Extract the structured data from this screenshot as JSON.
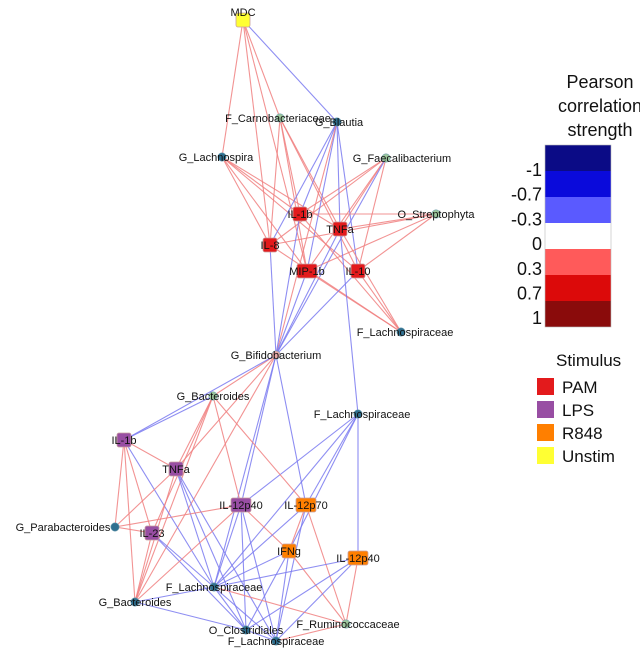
{
  "colorbar": {
    "title_lines": [
      "Pearson",
      "correlation",
      "strength"
    ],
    "ticks": [
      "-1",
      "-0.7",
      "-0.3",
      "0",
      "0.3",
      "0.7",
      "1"
    ],
    "colors": [
      "#0b0b86",
      "#0a0adb",
      "#5a5aff",
      "#ffffff",
      "#ff5a5a",
      "#dc0a0a",
      "#8a0b0b"
    ]
  },
  "stimulus_legend": {
    "title": "Stimulus",
    "items": [
      {
        "label": "PAM",
        "color": "#e31a1c"
      },
      {
        "label": "LPS",
        "color": "#984ea3"
      },
      {
        "label": "R848",
        "color": "#ff7f00"
      },
      {
        "label": "Unstim",
        "color": "#ffff33"
      }
    ]
  },
  "edge_colors": {
    "positive": "#f08080",
    "negative": "#7a7af0"
  },
  "nodes": [
    {
      "id": "mdc",
      "label": "MDC",
      "kind": "cytokine",
      "stim": "Unstim"
    },
    {
      "id": "carno",
      "label": "F_Carnobacteriaceae",
      "kind": "taxon",
      "color": "#9cc69c"
    },
    {
      "id": "blautia",
      "label": "G_Blautia",
      "kind": "taxon",
      "color": "#2f6f8f"
    },
    {
      "id": "lachno_g",
      "label": "G_Lachnospira",
      "kind": "taxon",
      "color": "#2f6f8f"
    },
    {
      "id": "faecali",
      "label": "G_Faecalibacterium",
      "kind": "taxon",
      "color": "#9cc69c"
    },
    {
      "id": "il1b_pam",
      "label": "IL-1b",
      "kind": "cytokine",
      "stim": "PAM"
    },
    {
      "id": "tnfa_pam",
      "label": "TNFa",
      "kind": "cytokine",
      "stim": "PAM"
    },
    {
      "id": "strepto",
      "label": "O_Streptophyta",
      "kind": "taxon",
      "color": "#9cc69c"
    },
    {
      "id": "il8_pam",
      "label": "IL-8",
      "kind": "cytokine",
      "stim": "PAM"
    },
    {
      "id": "mip1b_pam",
      "label": "MIP-1b",
      "kind": "cytokine",
      "stim": "PAM"
    },
    {
      "id": "il10_pam",
      "label": "IL-10",
      "kind": "cytokine",
      "stim": "PAM"
    },
    {
      "id": "lachnoF1",
      "label": "F_Lachnospiraceae",
      "kind": "taxon",
      "color": "#2f6f8f"
    },
    {
      "id": "bifido",
      "label": "G_Bifidobacterium",
      "kind": "taxon",
      "color": "#e9a8a8"
    },
    {
      "id": "bacter1",
      "label": "G_Bacteroides",
      "kind": "taxon",
      "color": "#9cc69c"
    },
    {
      "id": "lachnoF2",
      "label": "F_Lachnospiraceae",
      "kind": "taxon",
      "color": "#2f6f8f"
    },
    {
      "id": "il1b_lps",
      "label": "IL-1b",
      "kind": "cytokine",
      "stim": "LPS"
    },
    {
      "id": "tnfa_lps",
      "label": "TNFa",
      "kind": "cytokine",
      "stim": "LPS"
    },
    {
      "id": "il12p40_lps",
      "label": "IL-12p40",
      "kind": "cytokine",
      "stim": "LPS"
    },
    {
      "id": "il12p70_r848",
      "label": "IL-12p70",
      "kind": "cytokine",
      "stim": "R848"
    },
    {
      "id": "parabac",
      "label": "G_Parabacteroides",
      "kind": "taxon",
      "color": "#2f6f8f"
    },
    {
      "id": "il23_lps",
      "label": "IL-23",
      "kind": "cytokine",
      "stim": "LPS"
    },
    {
      "id": "ifng_r848",
      "label": "IFNg",
      "kind": "cytokine",
      "stim": "R848"
    },
    {
      "id": "il12p40_r848",
      "label": "IL-12p40",
      "kind": "cytokine",
      "stim": "R848"
    },
    {
      "id": "lachnoF3",
      "label": "F_Lachnospiraceae",
      "kind": "taxon",
      "color": "#2f6f8f"
    },
    {
      "id": "bacter2",
      "label": "G_Bacteroides",
      "kind": "taxon",
      "color": "#2f6f8f"
    },
    {
      "id": "rumino",
      "label": "F_Ruminococcaceae",
      "kind": "taxon",
      "color": "#9cc69c"
    },
    {
      "id": "clostri",
      "label": "O_Clostridiales",
      "kind": "taxon",
      "color": "#2f6f8f"
    },
    {
      "id": "lachnoF4",
      "label": "F_Lachnospiraceae",
      "kind": "taxon",
      "color": "#2f6f8f"
    }
  ],
  "edges": [
    {
      "a": "mdc",
      "b": "carno",
      "sign": "pos"
    },
    {
      "a": "mdc",
      "b": "lachno_g",
      "sign": "pos"
    },
    {
      "a": "mdc",
      "b": "il8_pam",
      "sign": "pos"
    },
    {
      "a": "mdc",
      "b": "mip1b_pam",
      "sign": "pos"
    },
    {
      "a": "mdc",
      "b": "blautia",
      "sign": "neg"
    },
    {
      "a": "carno",
      "b": "il1b_pam",
      "sign": "pos"
    },
    {
      "a": "carno",
      "b": "tnfa_pam",
      "sign": "pos"
    },
    {
      "a": "carno",
      "b": "il8_pam",
      "sign": "pos"
    },
    {
      "a": "carno",
      "b": "mip1b_pam",
      "sign": "pos"
    },
    {
      "a": "carno",
      "b": "il10_pam",
      "sign": "pos"
    },
    {
      "a": "lachno_g",
      "b": "il1b_pam",
      "sign": "pos"
    },
    {
      "a": "lachno_g",
      "b": "tnfa_pam",
      "sign": "pos"
    },
    {
      "a": "lachno_g",
      "b": "il8_pam",
      "sign": "pos"
    },
    {
      "a": "lachno_g",
      "b": "mip1b_pam",
      "sign": "pos"
    },
    {
      "a": "lachno_g",
      "b": "il10_pam",
      "sign": "pos"
    },
    {
      "a": "faecali",
      "b": "il1b_pam",
      "sign": "pos"
    },
    {
      "a": "faecali",
      "b": "tnfa_pam",
      "sign": "pos"
    },
    {
      "a": "faecali",
      "b": "il8_pam",
      "sign": "pos"
    },
    {
      "a": "faecali",
      "b": "mip1b_pam",
      "sign": "pos"
    },
    {
      "a": "faecali",
      "b": "il10_pam",
      "sign": "pos"
    },
    {
      "a": "faecali",
      "b": "bifido",
      "sign": "neg"
    },
    {
      "a": "blautia",
      "b": "il1b_pam",
      "sign": "neg"
    },
    {
      "a": "blautia",
      "b": "tnfa_pam",
      "sign": "neg"
    },
    {
      "a": "blautia",
      "b": "il8_pam",
      "sign": "neg"
    },
    {
      "a": "blautia",
      "b": "mip1b_pam",
      "sign": "neg"
    },
    {
      "a": "blautia",
      "b": "il10_pam",
      "sign": "neg"
    },
    {
      "a": "blautia",
      "b": "bifido",
      "sign": "pos"
    },
    {
      "a": "strepto",
      "b": "il1b_pam",
      "sign": "pos"
    },
    {
      "a": "strepto",
      "b": "tnfa_pam",
      "sign": "pos"
    },
    {
      "a": "strepto",
      "b": "il8_pam",
      "sign": "pos"
    },
    {
      "a": "strepto",
      "b": "mip1b_pam",
      "sign": "pos"
    },
    {
      "a": "strepto",
      "b": "il10_pam",
      "sign": "pos"
    },
    {
      "a": "lachnoF1",
      "b": "il1b_pam",
      "sign": "pos"
    },
    {
      "a": "lachnoF1",
      "b": "tnfa_pam",
      "sign": "pos"
    },
    {
      "a": "lachnoF1",
      "b": "il8_pam",
      "sign": "pos"
    },
    {
      "a": "lachnoF1",
      "b": "mip1b_pam",
      "sign": "pos"
    },
    {
      "a": "lachnoF1",
      "b": "il10_pam",
      "sign": "pos"
    },
    {
      "a": "bifido",
      "b": "il1b_pam",
      "sign": "neg"
    },
    {
      "a": "bifido",
      "b": "tnfa_pam",
      "sign": "neg"
    },
    {
      "a": "bifido",
      "b": "il8_pam",
      "sign": "neg"
    },
    {
      "a": "bifido",
      "b": "mip1b_pam",
      "sign": "neg"
    },
    {
      "a": "bifido",
      "b": "il10_pam",
      "sign": "neg"
    },
    {
      "a": "bifido",
      "b": "bacter1",
      "sign": "pos"
    },
    {
      "a": "bifido",
      "b": "il1b_lps",
      "sign": "neg"
    },
    {
      "a": "bifido",
      "b": "tnfa_lps",
      "sign": "pos"
    },
    {
      "a": "bifido",
      "b": "il12p40_lps",
      "sign": "neg"
    },
    {
      "a": "bifido",
      "b": "il12p70_r848",
      "sign": "neg"
    },
    {
      "a": "bifido",
      "b": "bacter2",
      "sign": "pos"
    },
    {
      "a": "bifido",
      "b": "lachnoF3",
      "sign": "neg"
    },
    {
      "a": "tnfa_pam",
      "b": "lachnoF2",
      "sign": "neg"
    },
    {
      "a": "lachnoF2",
      "b": "il12p40_lps",
      "sign": "neg"
    },
    {
      "a": "lachnoF2",
      "b": "il12p70_r848",
      "sign": "neg"
    },
    {
      "a": "lachnoF2",
      "b": "ifng_r848",
      "sign": "neg"
    },
    {
      "a": "lachnoF2",
      "b": "il12p40_r848",
      "sign": "neg"
    },
    {
      "a": "lachnoF2",
      "b": "lachnoF3",
      "sign": "neg"
    },
    {
      "a": "bacter1",
      "b": "il1b_lps",
      "sign": "neg"
    },
    {
      "a": "bacter1",
      "b": "tnfa_lps",
      "sign": "pos"
    },
    {
      "a": "bacter1",
      "b": "il12p40_lps",
      "sign": "pos"
    },
    {
      "a": "bacter1",
      "b": "il12p70_r848",
      "sign": "pos"
    },
    {
      "a": "bacter1",
      "b": "il23_lps",
      "sign": "pos"
    },
    {
      "a": "bacter1",
      "b": "bacter2",
      "sign": "pos"
    },
    {
      "a": "il1b_lps",
      "b": "tnfa_lps",
      "sign": "pos"
    },
    {
      "a": "il1b_lps",
      "b": "parabac",
      "sign": "pos"
    },
    {
      "a": "il1b_lps",
      "b": "il23_lps",
      "sign": "pos"
    },
    {
      "a": "il1b_lps",
      "b": "lachnoF3",
      "sign": "neg"
    },
    {
      "a": "il1b_lps",
      "b": "bacter2",
      "sign": "pos"
    },
    {
      "a": "tnfa_lps",
      "b": "parabac",
      "sign": "pos"
    },
    {
      "a": "tnfa_lps",
      "b": "bacter2",
      "sign": "pos"
    },
    {
      "a": "tnfa_lps",
      "b": "lachnoF3",
      "sign": "neg"
    },
    {
      "a": "tnfa_lps",
      "b": "clostri",
      "sign": "neg"
    },
    {
      "a": "tnfa_lps",
      "b": "lachnoF4",
      "sign": "neg"
    },
    {
      "a": "parabac",
      "b": "il12p40_lps",
      "sign": "pos"
    },
    {
      "a": "parabac",
      "b": "il23_lps",
      "sign": "pos"
    },
    {
      "a": "il23_lps",
      "b": "lachnoF3",
      "sign": "neg"
    },
    {
      "a": "il23_lps",
      "b": "bacter2",
      "sign": "pos"
    },
    {
      "a": "il23_lps",
      "b": "clostri",
      "sign": "neg"
    },
    {
      "a": "il12p40_lps",
      "b": "lachnoF3",
      "sign": "neg"
    },
    {
      "a": "il12p40_lps",
      "b": "ifng_r848",
      "sign": "pos"
    },
    {
      "a": "il12p40_lps",
      "b": "clostri",
      "sign": "neg"
    },
    {
      "a": "il12p40_lps",
      "b": "lachnoF4",
      "sign": "neg"
    },
    {
      "a": "il12p40_lps",
      "b": "bacter2",
      "sign": "pos"
    },
    {
      "a": "il12p70_r848",
      "b": "lachnoF3",
      "sign": "neg"
    },
    {
      "a": "il12p70_r848",
      "b": "ifng_r848",
      "sign": "pos"
    },
    {
      "a": "il12p70_r848",
      "b": "rumino",
      "sign": "pos"
    },
    {
      "a": "il12p70_r848",
      "b": "lachnoF4",
      "sign": "neg"
    },
    {
      "a": "ifng_r848",
      "b": "lachnoF3",
      "sign": "neg"
    },
    {
      "a": "ifng_r848",
      "b": "clostri",
      "sign": "neg"
    },
    {
      "a": "ifng_r848",
      "b": "lachnoF4",
      "sign": "neg"
    },
    {
      "a": "ifng_r848",
      "b": "rumino",
      "sign": "pos"
    },
    {
      "a": "il12p40_r848",
      "b": "lachnoF3",
      "sign": "neg"
    },
    {
      "a": "il12p40_r848",
      "b": "rumino",
      "sign": "pos"
    },
    {
      "a": "il12p40_r848",
      "b": "lachnoF4",
      "sign": "neg"
    },
    {
      "a": "il12p40_r848",
      "b": "clostri",
      "sign": "neg"
    },
    {
      "a": "lachnoF3",
      "b": "bacter2",
      "sign": "neg"
    },
    {
      "a": "lachnoF3",
      "b": "clostri",
      "sign": "neg"
    },
    {
      "a": "lachnoF3",
      "b": "lachnoF4",
      "sign": "neg"
    },
    {
      "a": "lachnoF3",
      "b": "rumino",
      "sign": "pos"
    },
    {
      "a": "bacter2",
      "b": "clostri",
      "sign": "neg"
    },
    {
      "a": "clostri",
      "b": "lachnoF4",
      "sign": "neg"
    },
    {
      "a": "lachnoF4",
      "b": "rumino",
      "sign": "pos"
    }
  ]
}
